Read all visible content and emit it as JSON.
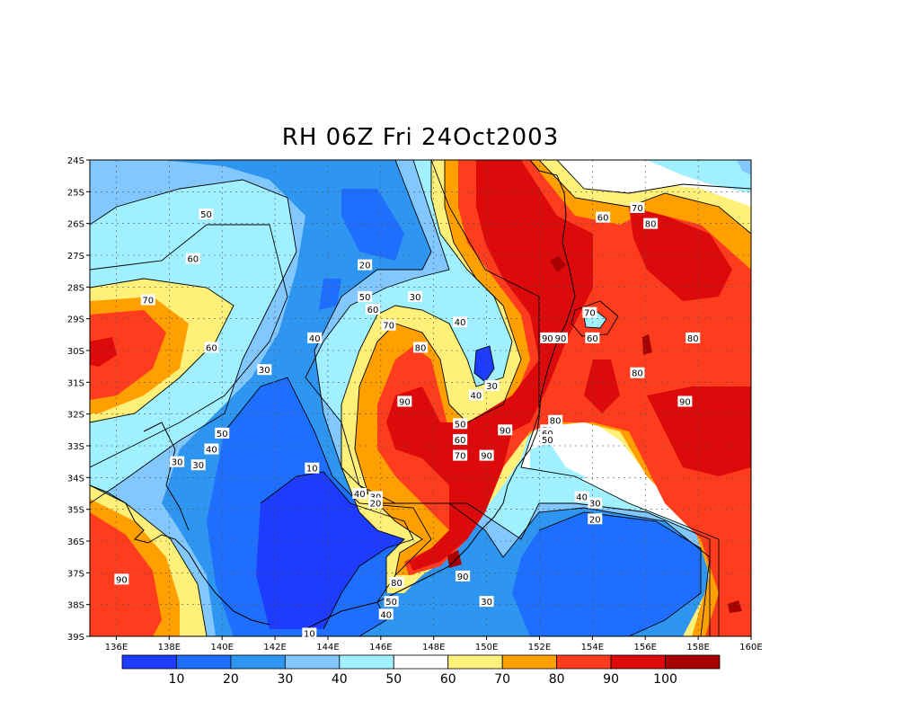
{
  "title": "RH 06Z Fri 24Oct2003",
  "map": {
    "lat_labels": [
      "24S",
      "25S",
      "26S",
      "27S",
      "28S",
      "29S",
      "30S",
      "31S",
      "32S",
      "33S",
      "34S",
      "35S",
      "36S",
      "37S",
      "38S",
      "39S"
    ],
    "lon_labels": [
      "136E",
      "138E",
      "140E",
      "142E",
      "144E",
      "146E",
      "148E",
      "150E",
      "152E",
      "154E",
      "156E",
      "158E",
      "160E"
    ],
    "contour_labels": [
      {
        "text": "50",
        "lon": 139.4,
        "lat": -25.7
      },
      {
        "text": "60",
        "lon": 138.9,
        "lat": -27.1
      },
      {
        "text": "70",
        "lon": 137.2,
        "lat": -28.4
      },
      {
        "text": "60",
        "lon": 139.6,
        "lat": -29.9
      },
      {
        "text": "20",
        "lon": 145.4,
        "lat": -27.3
      },
      {
        "text": "30",
        "lon": 147.3,
        "lat": -28.3
      },
      {
        "text": "50",
        "lon": 145.4,
        "lat": -28.3
      },
      {
        "text": "60",
        "lon": 145.7,
        "lat": -28.7
      },
      {
        "text": "40",
        "lon": 143.5,
        "lat": -29.6
      },
      {
        "text": "70",
        "lon": 146.3,
        "lat": -29.2
      },
      {
        "text": "40",
        "lon": 149.0,
        "lat": -29.1
      },
      {
        "text": "80",
        "lon": 147.5,
        "lat": -29.9
      },
      {
        "text": "30",
        "lon": 141.6,
        "lat": -30.6
      },
      {
        "text": "30",
        "lon": 150.2,
        "lat": -31.1
      },
      {
        "text": "40",
        "lon": 149.6,
        "lat": -31.4
      },
      {
        "text": "90",
        "lon": 146.9,
        "lat": -31.6
      },
      {
        "text": "50",
        "lon": 140.0,
        "lat": -32.6
      },
      {
        "text": "40",
        "lon": 139.6,
        "lat": -33.1
      },
      {
        "text": "30",
        "lon": 138.3,
        "lat": -33.5
      },
      {
        "text": "30",
        "lon": 139.1,
        "lat": -33.6
      },
      {
        "text": "50",
        "lon": 149.0,
        "lat": -32.3
      },
      {
        "text": "60",
        "lon": 149.0,
        "lat": -32.8
      },
      {
        "text": "70",
        "lon": 149.0,
        "lat": -33.3
      },
      {
        "text": "90",
        "lon": 150.7,
        "lat": -32.5
      },
      {
        "text": "90",
        "lon": 150.0,
        "lat": -33.3
      },
      {
        "text": "90",
        "lon": 152.3,
        "lat": -29.6
      },
      {
        "text": "90",
        "lon": 152.8,
        "lat": -29.6
      },
      {
        "text": "80",
        "lon": 152.6,
        "lat": -32.2
      },
      {
        "text": "70",
        "lon": 152.3,
        "lat": -32.5
      },
      {
        "text": "60",
        "lon": 152.3,
        "lat": -32.6
      },
      {
        "text": "50",
        "lon": 152.3,
        "lat": -32.8
      },
      {
        "text": "70",
        "lon": 153.9,
        "lat": -28.8
      },
      {
        "text": "60",
        "lon": 154.0,
        "lat": -29.6
      },
      {
        "text": "60",
        "lon": 154.4,
        "lat": -25.8
      },
      {
        "text": "70",
        "lon": 155.7,
        "lat": -25.5
      },
      {
        "text": "80",
        "lon": 156.2,
        "lat": -26.0
      },
      {
        "text": "80",
        "lon": 157.8,
        "lat": -29.6
      },
      {
        "text": "80",
        "lon": 155.7,
        "lat": -30.7
      },
      {
        "text": "90",
        "lon": 157.5,
        "lat": -31.6
      },
      {
        "text": "10",
        "lon": 143.4,
        "lat": -33.7
      },
      {
        "text": "40",
        "lon": 145.2,
        "lat": -34.5
      },
      {
        "text": "30",
        "lon": 145.8,
        "lat": -34.6
      },
      {
        "text": "20",
        "lon": 145.8,
        "lat": -34.8
      },
      {
        "text": "40",
        "lon": 153.6,
        "lat": -34.6
      },
      {
        "text": "30",
        "lon": 154.1,
        "lat": -34.8
      },
      {
        "text": "20",
        "lon": 154.1,
        "lat": -35.3
      },
      {
        "text": "80",
        "lon": 146.6,
        "lat": -37.3
      },
      {
        "text": "90",
        "lon": 149.1,
        "lat": -37.1
      },
      {
        "text": "50",
        "lon": 146.4,
        "lat": -37.9
      },
      {
        "text": "40",
        "lon": 146.2,
        "lat": -38.3
      },
      {
        "text": "30",
        "lon": 150.0,
        "lat": -37.9
      },
      {
        "text": "90",
        "lon": 136.2,
        "lat": -37.2
      },
      {
        "text": "10",
        "lon": 143.3,
        "lat": -38.9
      }
    ]
  },
  "colorbar": {
    "labels": [
      "10",
      "20",
      "30",
      "40",
      "50",
      "60",
      "70",
      "80",
      "90",
      "100"
    ],
    "colors": [
      "#1e3cff",
      "#1e6eff",
      "#2e96f0",
      "#82c8ff",
      "#a0f0ff",
      "#ffffff",
      "#fff07a",
      "#ffa000",
      "#ff3c1e",
      "#dc0a0a",
      "#a80000"
    ]
  },
  "colors": {
    "c10": "#1e3cff",
    "c20": "#1e6eff",
    "c30": "#2e96f0",
    "c40": "#82c8ff",
    "c50": "#a0f0ff",
    "c60": "#ffffff",
    "c70": "#fff07a",
    "c80": "#ffa000",
    "c90": "#ff3c1e",
    "c100": "#dc0a0a",
    "c110": "#a80000"
  }
}
